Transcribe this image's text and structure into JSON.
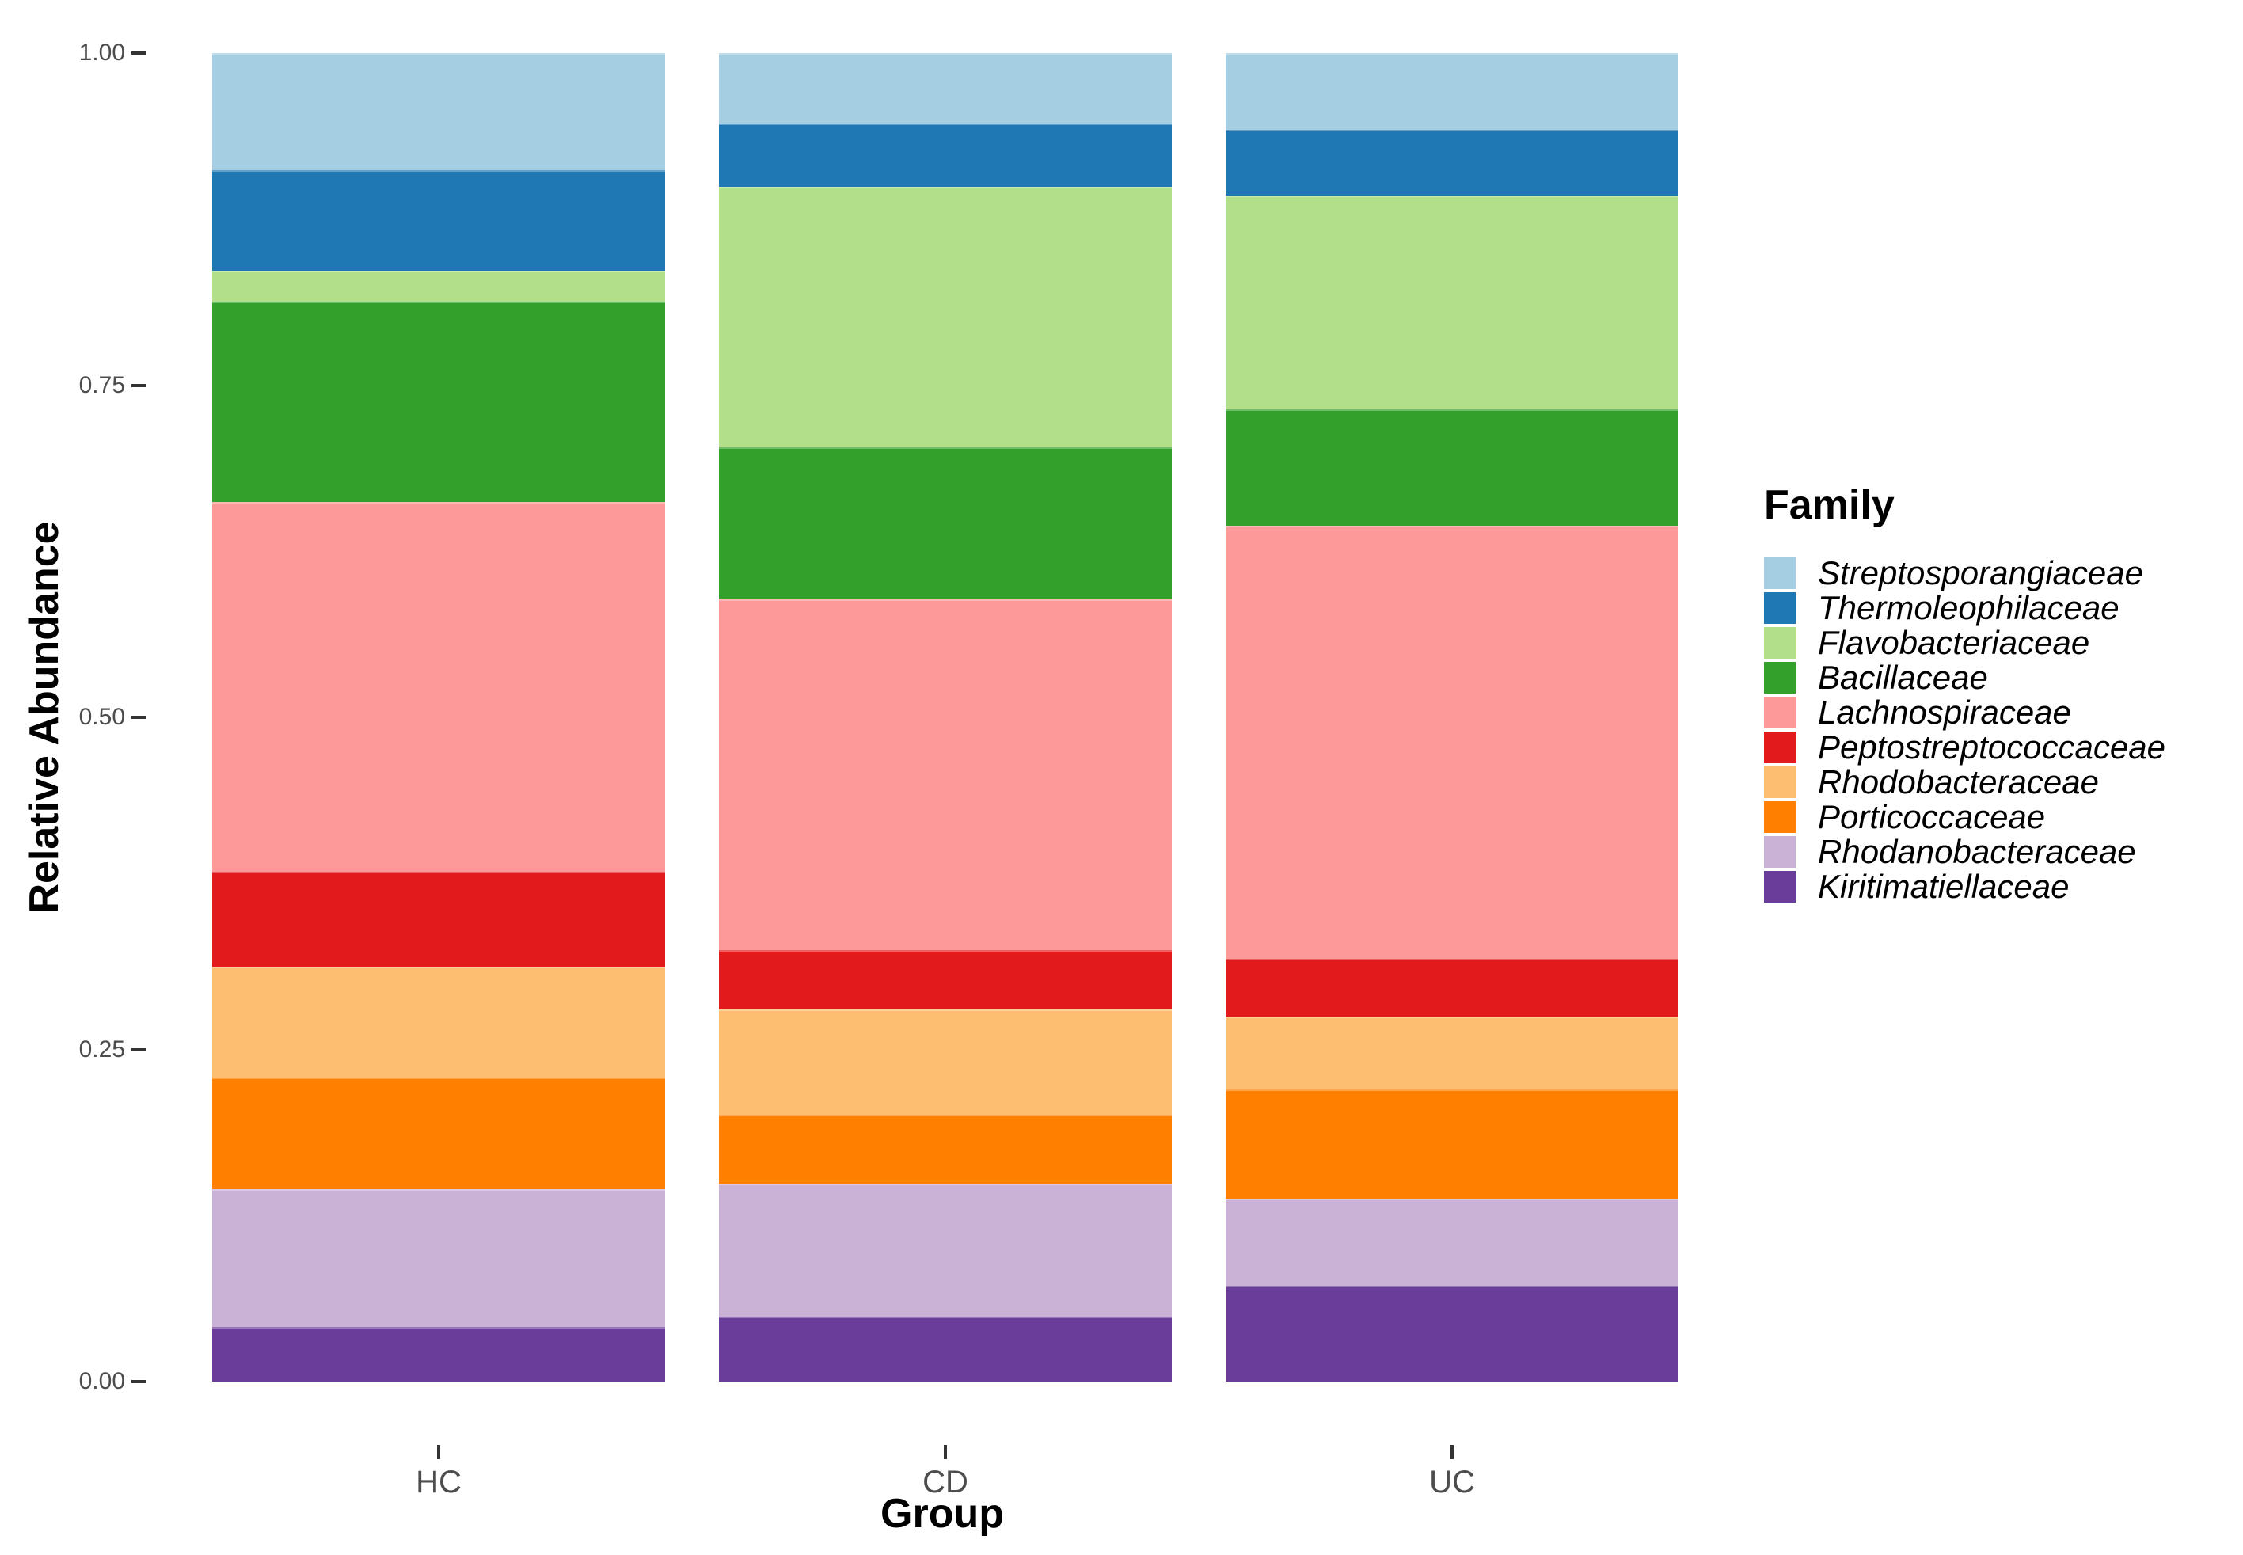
{
  "chart_data": {
    "type": "bar",
    "stacked": true,
    "title": "",
    "xlabel": "Group",
    "ylabel": "Relative Abundance",
    "legend_title": "Family",
    "legend_position": "right",
    "grid": false,
    "background": "#ffffff",
    "axis_text_color": "#4d4d4d",
    "tick_mark_color": "#333333",
    "categories": [
      "HC",
      "CD",
      "UC"
    ],
    "ylim": [
      0,
      1
    ],
    "y_ticks": [
      {
        "value": 0.0,
        "label": "0.00"
      },
      {
        "value": 0.25,
        "label": "0.25"
      },
      {
        "value": 0.5,
        "label": "0.50"
      },
      {
        "value": 0.75,
        "label": "0.75"
      },
      {
        "value": 1.0,
        "label": "1.00"
      }
    ],
    "series": [
      {
        "name": "Streptosporangiaceae",
        "color": "#A6CEE3",
        "values": [
          0.088,
          0.053,
          0.058
        ]
      },
      {
        "name": "Thermoleophilaceae",
        "color": "#1F78B4",
        "values": [
          0.076,
          0.048,
          0.049
        ]
      },
      {
        "name": "Flavobacteriaceae",
        "color": "#B2DF8A",
        "values": [
          0.023,
          0.196,
          0.161
        ]
      },
      {
        "name": "Bacillaceae",
        "color": "#33A02C",
        "values": [
          0.151,
          0.114,
          0.088
        ]
      },
      {
        "name": "Lachnospiraceae",
        "color": "#FB9A99",
        "values": [
          0.278,
          0.264,
          0.326
        ]
      },
      {
        "name": "Peptostreptococcaceae",
        "color": "#E31A1C",
        "values": [
          0.072,
          0.045,
          0.043
        ]
      },
      {
        "name": "Rhodobacteraceae",
        "color": "#FDBF6F",
        "values": [
          0.083,
          0.079,
          0.055
        ]
      },
      {
        "name": "Porticoccaceae",
        "color": "#FF7F00",
        "values": [
          0.084,
          0.052,
          0.082
        ]
      },
      {
        "name": "Rhodanobacteraceae",
        "color": "#CAB2D6",
        "values": [
          0.104,
          0.1,
          0.066
        ]
      },
      {
        "name": "Kiritimatiellaceae",
        "color": "#6A3D9A",
        "values": [
          0.041,
          0.049,
          0.072
        ]
      }
    ]
  }
}
